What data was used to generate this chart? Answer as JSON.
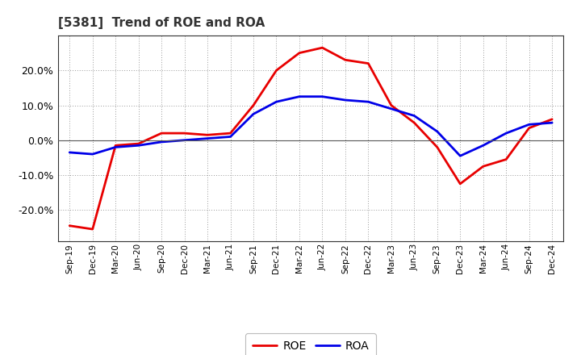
{
  "title": "[5381]  Trend of ROE and ROA",
  "x_labels": [
    "Sep-19",
    "Dec-19",
    "Mar-20",
    "Jun-20",
    "Sep-20",
    "Dec-20",
    "Mar-21",
    "Jun-21",
    "Sep-21",
    "Dec-21",
    "Mar-22",
    "Jun-22",
    "Sep-22",
    "Dec-22",
    "Mar-23",
    "Jun-23",
    "Sep-23",
    "Dec-23",
    "Mar-24",
    "Jun-24",
    "Sep-24",
    "Dec-24"
  ],
  "roe": [
    -24.5,
    -25.5,
    -1.5,
    -1.0,
    2.0,
    2.0,
    1.5,
    2.0,
    10.0,
    20.0,
    25.0,
    26.5,
    23.0,
    22.0,
    10.0,
    5.0,
    -2.0,
    -12.5,
    -7.5,
    -5.5,
    3.5,
    6.0
  ],
  "roa": [
    -3.5,
    -4.0,
    -2.0,
    -1.5,
    -0.5,
    0.0,
    0.5,
    1.0,
    7.5,
    11.0,
    12.5,
    12.5,
    11.5,
    11.0,
    9.0,
    7.0,
    2.5,
    -4.5,
    -1.5,
    2.0,
    4.5,
    5.0
  ],
  "roe_color": "#e80000",
  "roa_color": "#0000e8",
  "background_color": "#ffffff",
  "plot_bg_color": "#ffffff",
  "grid_color": "#999999",
  "ylim": [
    -29,
    30
  ],
  "yticks": [
    -20.0,
    -10.0,
    0.0,
    10.0,
    20.0
  ],
  "legend_roe": "ROE",
  "legend_roa": "ROA",
  "line_width": 2.0
}
